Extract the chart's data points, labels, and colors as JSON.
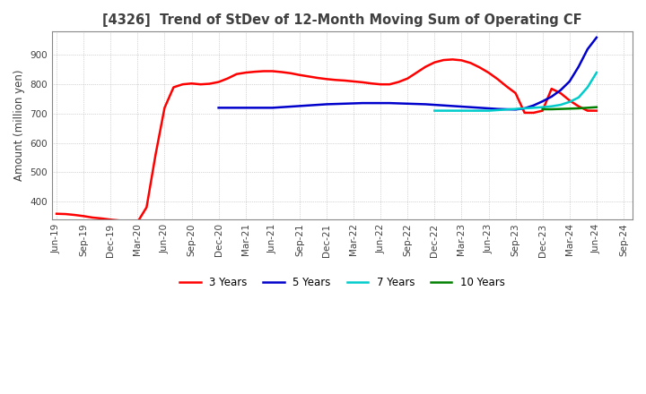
{
  "title": "[4326]  Trend of StDev of 12-Month Moving Sum of Operating CF",
  "ylabel": "Amount (million yen)",
  "ylim": [
    340,
    980
  ],
  "yticks": [
    400,
    500,
    600,
    700,
    800,
    900
  ],
  "background_color": "#ffffff",
  "grid_color": "#b0b0b0",
  "title_color": "#404040",
  "series": {
    "3y": {
      "color": "#ff0000",
      "label": "3 Years",
      "x": [
        0,
        1,
        2,
        3,
        4,
        5,
        6,
        7,
        8,
        9,
        10,
        11,
        12,
        13,
        14,
        15,
        16,
        17,
        18,
        19,
        20,
        21,
        22,
        23,
        24,
        25,
        26,
        27,
        28,
        29,
        30,
        31,
        32,
        33,
        34,
        35,
        36,
        37,
        38,
        39,
        40,
        41,
        42,
        43,
        44,
        45,
        46,
        47,
        48,
        49,
        50,
        51,
        52,
        53,
        54,
        55,
        56,
        57,
        58,
        59,
        60
      ],
      "y": [
        358,
        357,
        354,
        350,
        345,
        342,
        338,
        335,
        332,
        330,
        380,
        560,
        720,
        790,
        800,
        803,
        800,
        802,
        808,
        820,
        835,
        840,
        843,
        845,
        845,
        842,
        838,
        832,
        827,
        822,
        818,
        815,
        813,
        810,
        807,
        803,
        800,
        800,
        808,
        820,
        840,
        860,
        875,
        883,
        885,
        882,
        873,
        858,
        840,
        818,
        793,
        770,
        703,
        703,
        710,
        785,
        770,
        745,
        725,
        710,
        710
      ]
    },
    "5y": {
      "color": "#0000cc",
      "label": "5 Years",
      "x": [
        18,
        19,
        20,
        21,
        22,
        23,
        24,
        25,
        26,
        27,
        28,
        29,
        30,
        31,
        32,
        33,
        34,
        35,
        36,
        37,
        38,
        39,
        40,
        41,
        42,
        43,
        44,
        45,
        46,
        47,
        48,
        49,
        50,
        51,
        52,
        53,
        54,
        55,
        56,
        57,
        58,
        59,
        60
      ],
      "y": [
        720,
        720,
        720,
        720,
        720,
        720,
        720,
        722,
        724,
        726,
        728,
        730,
        732,
        733,
        734,
        735,
        736,
        736,
        736,
        736,
        735,
        734,
        733,
        732,
        730,
        728,
        726,
        724,
        722,
        720,
        718,
        716,
        715,
        714,
        718,
        728,
        742,
        758,
        780,
        810,
        860,
        920,
        960
      ]
    },
    "7y": {
      "color": "#00cccc",
      "label": "7 Years",
      "x": [
        42,
        43,
        44,
        45,
        46,
        47,
        48,
        49,
        50,
        51,
        52,
        53,
        54,
        55,
        56,
        57,
        58,
        59,
        60
      ],
      "y": [
        710,
        710,
        710,
        710,
        710,
        710,
        710,
        712,
        714,
        716,
        718,
        720,
        722,
        725,
        730,
        740,
        755,
        790,
        840
      ]
    },
    "10y": {
      "color": "#008000",
      "label": "10 Years",
      "x": [
        54,
        55,
        56,
        57,
        58,
        59,
        60
      ],
      "y": [
        715,
        715,
        716,
        717,
        718,
        720,
        722
      ]
    }
  },
  "xtick_labels": [
    "Jun-19",
    "Sep-19",
    "Dec-19",
    "Mar-20",
    "Jun-20",
    "Sep-20",
    "Dec-20",
    "Mar-21",
    "Jun-21",
    "Sep-21",
    "Dec-21",
    "Mar-22",
    "Jun-22",
    "Sep-22",
    "Dec-22",
    "Mar-23",
    "Jun-23",
    "Sep-23",
    "Dec-23",
    "Mar-24",
    "Jun-24",
    "Sep-24"
  ],
  "xtick_positions": [
    0,
    3,
    6,
    9,
    12,
    15,
    18,
    21,
    24,
    27,
    30,
    33,
    36,
    39,
    42,
    45,
    48,
    51,
    54,
    57,
    60,
    63
  ]
}
